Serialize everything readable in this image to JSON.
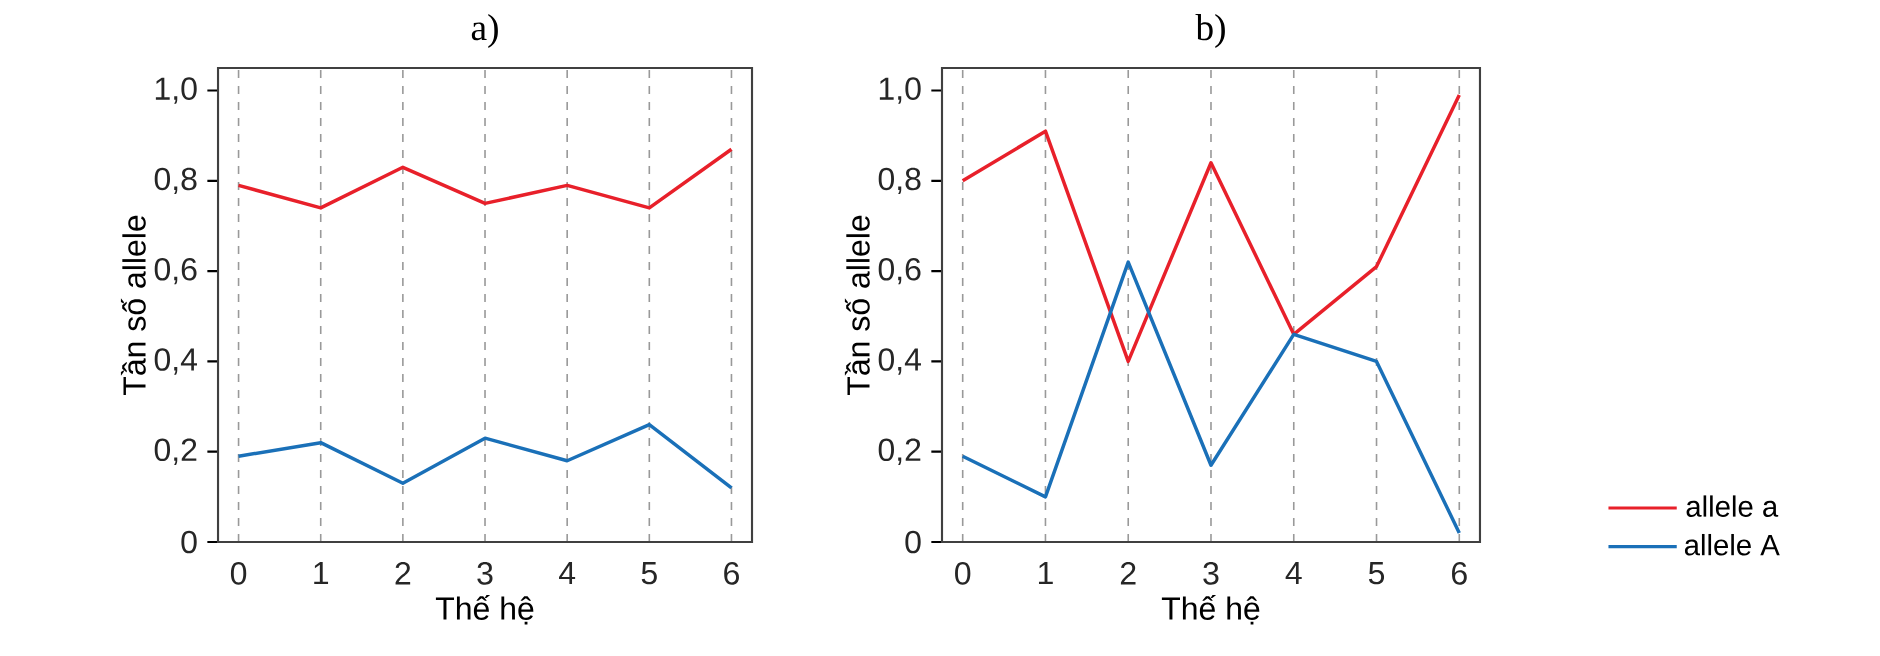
{
  "chart_data": [
    {
      "type": "line",
      "title": "a)",
      "xlabel": "Thế hệ",
      "ylabel": "Tần số allele",
      "x": [
        0,
        1,
        2,
        3,
        4,
        5,
        6
      ],
      "xlim": [
        -0.25,
        6.25
      ],
      "xticks": [
        0,
        1,
        2,
        3,
        4,
        5,
        6
      ],
      "ylim": [
        0,
        1.05
      ],
      "yticks": [
        0,
        {
          "value": 0.2,
          "label": "0,2"
        },
        {
          "value": 0.4,
          "label": "0,4"
        },
        {
          "value": 0.6,
          "label": "0,6"
        },
        {
          "value": 0.8,
          "label": "0,8"
        },
        {
          "value": 1.0,
          "label": "1,0"
        }
      ],
      "grid": "x",
      "legend": false,
      "series": [
        {
          "color": "#e8202a",
          "values": [
            0.79,
            0.74,
            0.83,
            0.75,
            0.79,
            0.74,
            0.87
          ]
        },
        {
          "color": "#1a70b8",
          "values": [
            0.19,
            0.22,
            0.13,
            0.23,
            0.18,
            0.26,
            0.12
          ]
        }
      ]
    },
    {
      "type": "line",
      "title": "b)",
      "xlabel": "Thế hệ",
      "ylabel": "Tần số allele",
      "x": [
        0,
        1,
        2,
        3,
        4,
        5,
        6
      ],
      "xlim": [
        -0.25,
        6.25
      ],
      "xticks": [
        0,
        1,
        2,
        3,
        4,
        5,
        6
      ],
      "ylim": [
        0,
        1.05
      ],
      "yticks": [
        0,
        {
          "value": 0.2,
          "label": "0,2"
        },
        {
          "value": 0.4,
          "label": "0,4"
        },
        {
          "value": 0.6,
          "label": "0,6"
        },
        {
          "value": 0.8,
          "label": "0,8"
        },
        {
          "value": 1.0,
          "label": "1,0"
        }
      ],
      "grid": "x",
      "legend": "bottom right",
      "series": [
        {
          "name": "allele a",
          "color": "#e8202a",
          "values": [
            0.8,
            0.91,
            0.4,
            0.84,
            0.46,
            0.61,
            0.99
          ]
        },
        {
          "name": "allele A",
          "color": "#1a70b8",
          "values": [
            0.19,
            0.1,
            0.62,
            0.17,
            0.46,
            0.4,
            0.02
          ]
        }
      ]
    }
  ]
}
